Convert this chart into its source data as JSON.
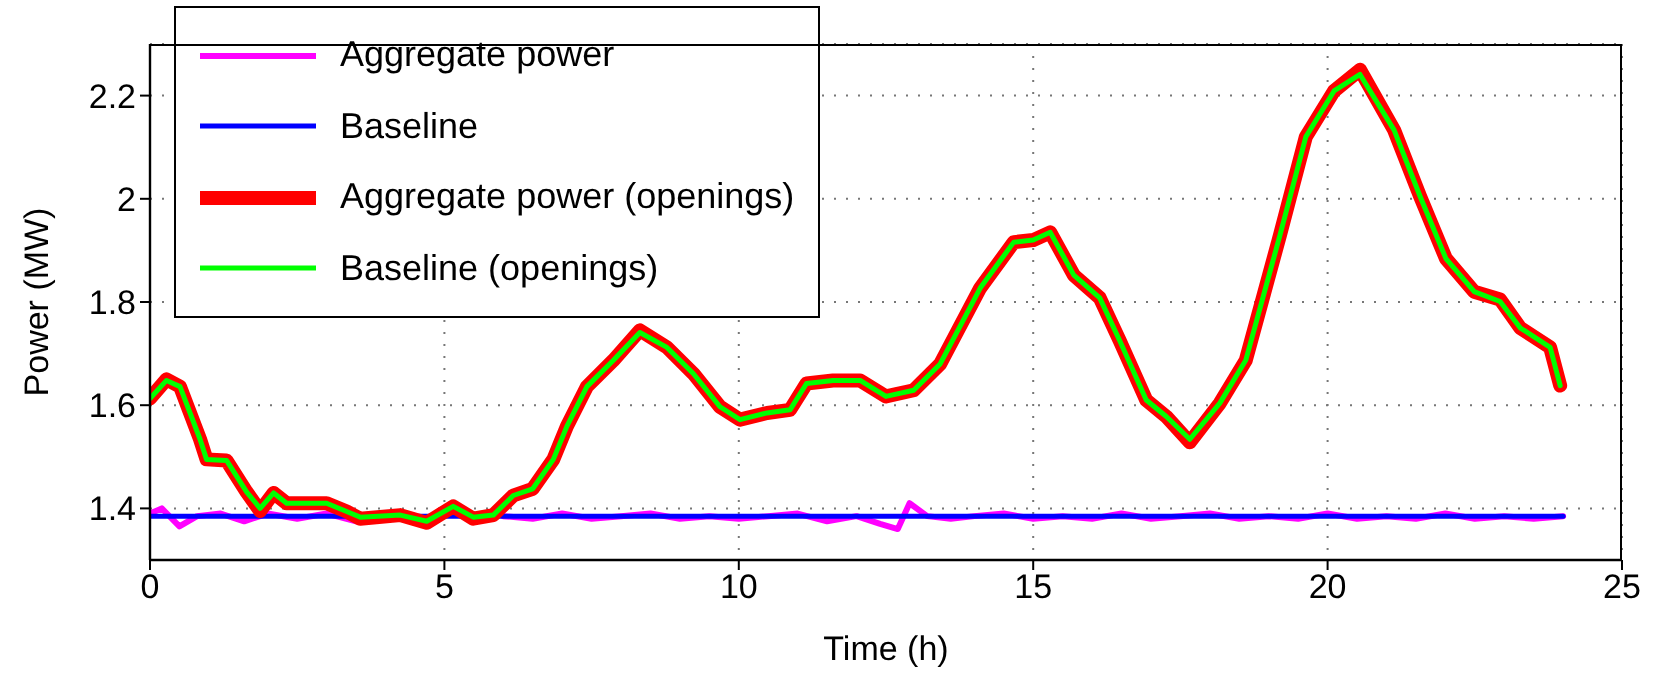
{
  "chart_data": {
    "type": "line",
    "xlabel": "Time (h)",
    "ylabel": "Power (MW)",
    "xlim": [
      0,
      25
    ],
    "xticks": [
      0,
      5,
      10,
      15,
      20,
      25
    ],
    "ylim": [
      1.3,
      2.3
    ],
    "yticks": [
      1.4,
      1.6,
      1.8,
      2,
      2.2
    ],
    "grid": true,
    "legend": "top left",
    "line_style": "solid",
    "marker": "none",
    "series": [
      {
        "name": "Aggregate power",
        "color": "#ff00ff",
        "x": [
          0,
          0.2,
          0.5,
          0.8,
          1.2,
          1.6,
          2,
          2.5,
          3,
          3.5,
          4,
          4.5,
          5,
          5.5,
          6,
          6.5,
          7,
          7.5,
          8,
          8.5,
          9,
          9.5,
          10,
          10.5,
          11,
          11.5,
          12,
          12.4,
          12.7,
          12.9,
          13.2,
          13.6,
          14,
          14.5,
          15,
          15.5,
          16,
          16.5,
          17,
          17.5,
          18,
          18.5,
          19,
          19.5,
          20,
          20.5,
          21,
          21.5,
          22,
          22.5,
          23,
          23.5,
          24
        ],
        "values": [
          1.39,
          1.4,
          1.365,
          1.385,
          1.39,
          1.375,
          1.39,
          1.38,
          1.39,
          1.375,
          null,
          null,
          null,
          null,
          1.385,
          1.38,
          1.39,
          1.38,
          1.385,
          1.39,
          1.38,
          1.385,
          1.38,
          1.385,
          1.39,
          1.375,
          1.385,
          1.37,
          1.36,
          1.41,
          1.385,
          1.38,
          1.385,
          1.39,
          1.38,
          1.385,
          1.38,
          1.39,
          1.38,
          1.385,
          1.39,
          1.38,
          1.385,
          1.38,
          1.39,
          1.38,
          1.385,
          1.38,
          1.39,
          1.38,
          1.385,
          1.38,
          1.385
        ]
      },
      {
        "name": "Baseline",
        "color": "#0000ff",
        "x": [
          0,
          24
        ],
        "values": [
          1.385,
          1.385
        ]
      },
      {
        "name": "Aggregate power (openings)",
        "color": "#ff0000",
        "x": [
          0,
          0.28,
          0.51,
          0.85,
          0.96,
          1.3,
          1.64,
          1.87,
          2.1,
          2.32,
          3,
          3.34,
          3.57,
          4.25,
          4.7,
          5.15,
          5.49,
          5.83,
          6.17,
          6.5,
          6.85,
          7.08,
          7.42,
          7.87,
          8.32,
          8.78,
          9.23,
          9.68,
          10.02,
          10.48,
          10.87,
          11.15,
          11.6,
          12.06,
          12.5,
          12.97,
          13.42,
          14.1,
          14.67,
          15,
          15.29,
          15.69,
          16.13,
          16.47,
          16.92,
          17.26,
          17.66,
          18.17,
          18.61,
          19.19,
          19.63,
          20.11,
          20.55,
          21.13,
          21.57,
          22.01,
          22.49,
          22.93,
          23.27,
          23.78,
          23.95
        ],
        "values": [
          1.613,
          1.65,
          1.636,
          1.534,
          1.495,
          1.493,
          1.432,
          1.395,
          1.43,
          1.41,
          1.41,
          1.394,
          1.38,
          1.387,
          1.372,
          1.404,
          1.38,
          1.387,
          1.425,
          1.438,
          1.495,
          1.559,
          1.636,
          1.687,
          1.745,
          1.712,
          1.661,
          1.597,
          1.572,
          1.585,
          1.591,
          1.642,
          1.648,
          1.648,
          1.617,
          1.629,
          1.68,
          1.827,
          1.916,
          1.92,
          1.935,
          1.852,
          1.808,
          1.725,
          1.61,
          1.578,
          1.528,
          1.604,
          1.687,
          1.929,
          2.12,
          2.209,
          2.25,
          2.133,
          2.005,
          1.884,
          1.82,
          1.805,
          1.75,
          1.712,
          1.638
        ]
      },
      {
        "name": "Baseline (openings)",
        "color": "#00ff00",
        "x": [
          0,
          0.28,
          0.51,
          0.85,
          0.96,
          1.3,
          1.64,
          1.87,
          2.1,
          2.32,
          3,
          3.34,
          3.57,
          4.25,
          4.7,
          5.15,
          5.49,
          5.83,
          6.17,
          6.5,
          6.85,
          7.08,
          7.42,
          7.87,
          8.32,
          8.78,
          9.23,
          9.68,
          10.02,
          10.48,
          10.87,
          11.15,
          11.6,
          12.06,
          12.5,
          12.97,
          13.42,
          14.1,
          14.67,
          15,
          15.29,
          15.69,
          16.13,
          16.47,
          16.92,
          17.26,
          17.66,
          18.17,
          18.61,
          19.19,
          19.63,
          20.11,
          20.55,
          21.13,
          21.57,
          22.01,
          22.49,
          22.93,
          23.27,
          23.78,
          23.95
        ],
        "values": [
          1.613,
          1.648,
          1.636,
          1.534,
          1.495,
          1.493,
          1.432,
          1.4,
          1.43,
          1.41,
          1.41,
          1.394,
          1.383,
          1.387,
          1.375,
          1.404,
          1.383,
          1.387,
          1.425,
          1.438,
          1.495,
          1.559,
          1.636,
          1.687,
          1.741,
          1.712,
          1.661,
          1.597,
          1.572,
          1.585,
          1.591,
          1.642,
          1.648,
          1.648,
          1.617,
          1.629,
          1.68,
          1.827,
          1.916,
          1.92,
          1.935,
          1.852,
          1.808,
          1.725,
          1.61,
          1.578,
          1.534,
          1.604,
          1.687,
          1.929,
          2.12,
          2.209,
          2.241,
          2.133,
          2.005,
          1.884,
          1.82,
          1.801,
          1.75,
          1.712,
          1.638
        ]
      }
    ]
  }
}
